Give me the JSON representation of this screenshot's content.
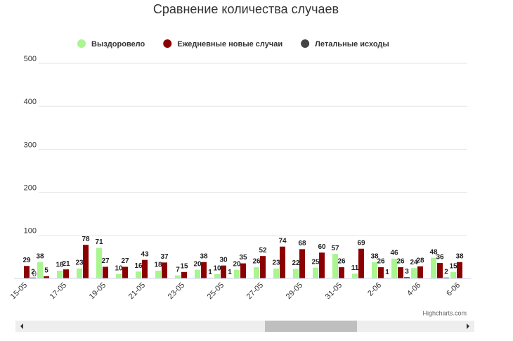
{
  "chart_data": {
    "type": "bar",
    "title": "Сравнение количества случаев",
    "categories": [
      "15-05",
      null,
      "17-05",
      null,
      "19-05",
      null,
      "21-05",
      null,
      "23-05",
      null,
      "25-05",
      null,
      "27-05",
      null,
      "29-05",
      null,
      "31-05",
      null,
      "2-06",
      null,
      "4-06",
      null,
      "6-06"
    ],
    "series": [
      {
        "name": "Выздоровело",
        "color": "#a9f58f",
        "values": [
          null,
          38,
          18,
          23,
          71,
          10,
          16,
          18,
          7,
          20,
          10,
          20,
          26,
          23,
          22,
          25,
          57,
          11,
          38,
          46,
          24,
          48,
          15
        ]
      },
      {
        "name": "Ежедневные новые случаи",
        "color": "#8b0000",
        "values": [
          29,
          5,
          21,
          78,
          27,
          27,
          43,
          37,
          15,
          38,
          30,
          35,
          52,
          74,
          68,
          60,
          26,
          69,
          26,
          26,
          28,
          36,
          38
        ]
      },
      {
        "name": "Летальные исходы",
        "color": "#434348",
        "values": [
          2,
          null,
          null,
          null,
          null,
          null,
          null,
          null,
          null,
          1,
          1,
          null,
          null,
          null,
          null,
          null,
          null,
          null,
          1,
          3,
          null,
          2,
          null
        ]
      }
    ],
    "ylim": [
      0,
      500
    ],
    "yticks": [
      0,
      100,
      200,
      300,
      400,
      500
    ],
    "grid": true,
    "credits": "Highcharts.com"
  }
}
